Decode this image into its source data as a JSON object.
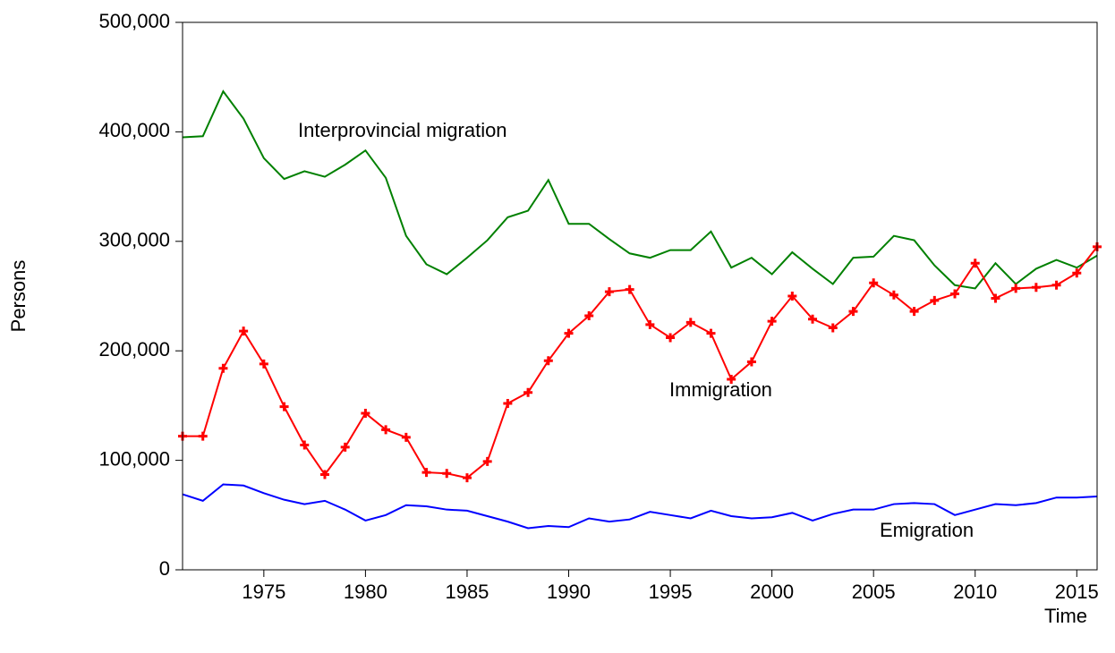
{
  "chart_data": {
    "type": "line",
    "x_label": "Time",
    "y_label": "Persons",
    "x": [
      1971,
      1972,
      1973,
      1974,
      1975,
      1976,
      1977,
      1978,
      1979,
      1980,
      1981,
      1982,
      1983,
      1984,
      1985,
      1986,
      1987,
      1988,
      1989,
      1990,
      1991,
      1992,
      1993,
      1994,
      1995,
      1996,
      1997,
      1998,
      1999,
      2000,
      2001,
      2002,
      2003,
      2004,
      2005,
      2006,
      2007,
      2008,
      2009,
      2010,
      2011,
      2012,
      2013,
      2014,
      2015,
      2016
    ],
    "series": [
      {
        "name": "Interprovincial migration",
        "color": "#008000",
        "values": [
          395000,
          396000,
          437000,
          412000,
          376000,
          357000,
          364000,
          359000,
          370000,
          383000,
          358000,
          305000,
          279000,
          270000,
          285000,
          301000,
          322000,
          328000,
          356000,
          316000,
          316000,
          302000,
          289000,
          285000,
          292000,
          292000,
          309000,
          276000,
          285000,
          270000,
          290000,
          275000,
          261000,
          285000,
          286000,
          305000,
          301000,
          278000,
          260000,
          257000,
          280000,
          261000,
          275000,
          283000,
          276000,
          287000
        ]
      },
      {
        "name": "Immigration",
        "color": "#ff0000",
        "marker": "+",
        "values": [
          122000,
          122000,
          184000,
          218000,
          188000,
          149000,
          114000,
          87000,
          112000,
          143000,
          128000,
          121000,
          89000,
          88000,
          84000,
          99000,
          152000,
          162000,
          191000,
          216000,
          232000,
          254000,
          256000,
          224000,
          212000,
          226000,
          216000,
          174000,
          190000,
          227000,
          250000,
          229000,
          221000,
          236000,
          262000,
          251000,
          236000,
          246000,
          252000,
          280000,
          248000,
          257000,
          258000,
          260000,
          271000,
          295000
        ]
      },
      {
        "name": "Emigration",
        "color": "#0000ff",
        "values": [
          69000,
          63000,
          78000,
          77000,
          70000,
          64000,
          60000,
          63000,
          55000,
          45000,
          50000,
          59000,
          58000,
          55000,
          54000,
          49000,
          44000,
          38000,
          40000,
          39000,
          47000,
          44000,
          46000,
          53000,
          50000,
          47000,
          54000,
          49000,
          47000,
          48000,
          52000,
          45000,
          51000,
          55000,
          55000,
          60000,
          61000,
          60000,
          50000,
          55000,
          60000,
          59000,
          61000,
          66000,
          66000,
          67000
        ]
      }
    ],
    "xlim": [
      1971,
      2016
    ],
    "xticks": [
      1975,
      1980,
      1985,
      1990,
      1995,
      2000,
      2005,
      2010,
      2015
    ],
    "ylim": [
      0,
      500000
    ],
    "yticks": [
      0,
      {
        "value": 100000,
        "label": "100,000"
      },
      {
        "value": 200000,
        "label": "200,000"
      },
      {
        "value": 300000,
        "label": "300,000"
      },
      {
        "value": 400000,
        "label": "400,000"
      },
      {
        "value": 500000,
        "label": "500,000"
      }
    ],
    "grid": false
  }
}
